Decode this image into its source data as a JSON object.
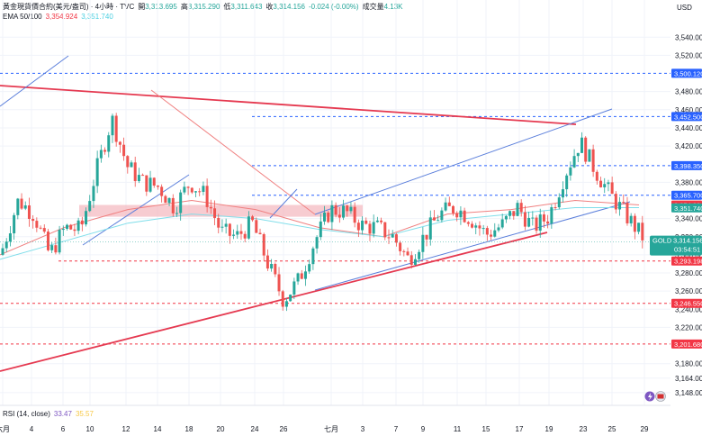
{
  "header": {
    "symbol": "黃金現貨價合約(美元/盎司) · 4小時 · TVC",
    "open_label": "開",
    "open": "3,313.695",
    "high_label": "高",
    "high": "3,315.290",
    "low_label": "低",
    "low": "3,311.643",
    "close_label": "收",
    "close": "3,314.156",
    "change": "-0.024 (-0.00%)",
    "volume_label": "成交量",
    "volume": "4.13K",
    "ema_label": "EMA 50/100",
    "ema50": "3,354.924",
    "ema100": "3,351.740"
  },
  "axis": {
    "currency": "USD"
  },
  "rsi": {
    "label": "RSI (14, close)",
    "value1": "33.47",
    "value2": "35.57"
  },
  "colors": {
    "up": "#26a69a",
    "down": "#ef5350",
    "ema50": "#f08080",
    "ema100": "#80deea",
    "trend_blue": "#5b7fdb",
    "trend_red": "#e53950",
    "level_red": "#f23645",
    "level_blue": "#2962ff"
  },
  "chart_data": {
    "type": "candlestick",
    "y_range": [
      3134,
      3581
    ],
    "y_ticks": [
      "3,540.000",
      "3,520.000",
      "3,480.000",
      "3,460.000",
      "3,440.000",
      "3,420.000",
      "3,380.000",
      "3,340.000",
      "3,320.000",
      "3,300.000",
      "3,280.000",
      "3,260.000",
      "3,240.000",
      "3,220.000",
      "3,180.000",
      "3,164.000",
      "3,148.000"
    ],
    "x_ticks": [
      "六月",
      "4",
      "6",
      "10",
      "12",
      "14",
      "18",
      "20",
      "24",
      "26",
      "七月",
      "3",
      "7",
      "9",
      "11",
      "15",
      "17",
      "19",
      "23",
      "25",
      "29"
    ],
    "price_labels": [
      {
        "label": "3,500.120",
        "color": "#2962ff"
      },
      {
        "label": "3,452.500",
        "color": "#2962ff"
      },
      {
        "label": "3,398.350",
        "color": "#2962ff"
      },
      {
        "label": "3,365.700",
        "color": "#2962ff"
      },
      {
        "label": "3,354.924",
        "color": "#f23645"
      },
      {
        "label": "3,351.740",
        "color": "#26a69a"
      },
      {
        "label": "3,293.198",
        "color": "#f23645"
      },
      {
        "label": "3,246.550",
        "color": "#f23645"
      },
      {
        "label": "3,201.680",
        "color": "#f23645"
      }
    ],
    "last_price": {
      "symbol": "GOLD",
      "price": "3,314.156",
      "countdown": "03:54:51"
    },
    "blue_levels": [
      3500.12,
      3452.5,
      3398.35,
      3365.7
    ],
    "red_levels": [
      3293.2,
      3246.55,
      3201.68
    ],
    "close_path": [
      [
        3300,
        3315
      ],
      [
        3345,
        3375
      ],
      [
        3355,
        3335
      ],
      [
        3305,
        3295
      ],
      [
        3320,
        3340
      ],
      [
        3325,
        3330
      ],
      [
        3375,
        3410
      ],
      [
        3455,
        3445
      ],
      [
        3405,
        3390
      ],
      [
        3385,
        3375
      ],
      [
        3380,
        3370
      ],
      [
        3360,
        3345
      ],
      [
        3375,
        3385
      ],
      [
        3370,
        3360
      ],
      [
        3340,
        3310
      ],
      [
        3315,
        3325
      ],
      [
        3340,
        3330
      ],
      [
        3300,
        3280
      ],
      [
        3255,
        3245
      ],
      [
        3265,
        3280
      ],
      [
        3300,
        3330
      ],
      [
        3345,
        3355
      ],
      [
        3350,
        3345
      ],
      [
        3335,
        3330
      ],
      [
        3320,
        3340
      ],
      [
        3330,
        3310
      ],
      [
        3300,
        3290
      ],
      [
        3310,
        3330
      ],
      [
        3340,
        3350
      ],
      [
        3360,
        3345
      ],
      [
        3335,
        3345
      ],
      [
        3330,
        3315
      ],
      [
        3325,
        3340
      ],
      [
        3350,
        3355
      ],
      [
        3340,
        3320
      ],
      [
        3335,
        3350
      ],
      [
        3375,
        3400
      ],
      [
        3420,
        3430
      ],
      [
        3405,
        3380
      ],
      [
        3370,
        3360
      ],
      [
        3345,
        3340
      ],
      [
        3330,
        3310
      ]
    ],
    "ema50": [
      [
        0,
        3300
      ],
      [
        10,
        3330
      ],
      [
        20,
        3350
      ],
      [
        30,
        3360
      ],
      [
        40,
        3350
      ],
      [
        50,
        3330
      ],
      [
        60,
        3320
      ],
      [
        70,
        3345
      ],
      [
        80,
        3350
      ],
      [
        90,
        3360
      ],
      [
        100,
        3355
      ]
    ],
    "ema100": [
      [
        0,
        3295
      ],
      [
        10,
        3315
      ],
      [
        20,
        3335
      ],
      [
        30,
        3345
      ],
      [
        40,
        3340
      ],
      [
        50,
        3328
      ],
      [
        60,
        3320
      ],
      [
        70,
        3338
      ],
      [
        80,
        3345
      ],
      [
        90,
        3352
      ],
      [
        100,
        3352
      ]
    ]
  }
}
